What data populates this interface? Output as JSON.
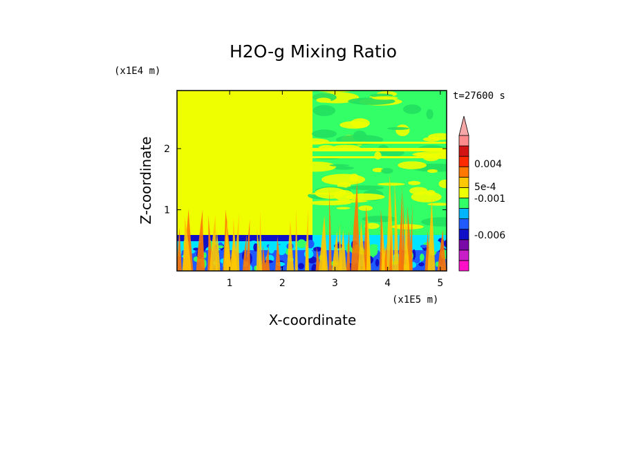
{
  "chart_data": {
    "type": "heatmap",
    "title": "H2O-g Mixing Ratio",
    "xlabel": "X-coordinate",
    "ylabel": "Z-coordinate",
    "x_unit": "(x1E5 m)",
    "y_unit": "(x1E4 m)",
    "time_label": "t=27600 s",
    "x_ticks": [
      "1",
      "2",
      "3",
      "4",
      "5"
    ],
    "x_tick_values": [
      1,
      2,
      3,
      4,
      5
    ],
    "y_ticks": [
      "1",
      "2"
    ],
    "y_tick_values": [
      1,
      2
    ],
    "xlim": [
      0,
      5.12
    ],
    "ylim": [
      0,
      2.95
    ],
    "colorbar": {
      "colors": [
        "#ff10c8",
        "#c81ec8",
        "#7a0aa8",
        "#1010c8",
        "#1e5aff",
        "#00b4ff",
        "#33ff66",
        "#f0ff00",
        "#ffc800",
        "#ff7800",
        "#ff2a00",
        "#d21414",
        "#ff8c8c"
      ],
      "labels": [
        "-0.006",
        "-0.001",
        "5e-4",
        "0.004"
      ],
      "extend_max": true,
      "extend_color": "#f6a7a7"
    },
    "regions": [
      {
        "label": "upper-left",
        "color": "#f0ff00"
      },
      {
        "label": "upper-right",
        "color": "#33ff66"
      },
      {
        "label": "boundary-layer",
        "color": "#00e5ff"
      },
      {
        "label": "surface",
        "color": "#1e5aff"
      },
      {
        "label": "plumes",
        "color": "#ff7800"
      }
    ]
  }
}
